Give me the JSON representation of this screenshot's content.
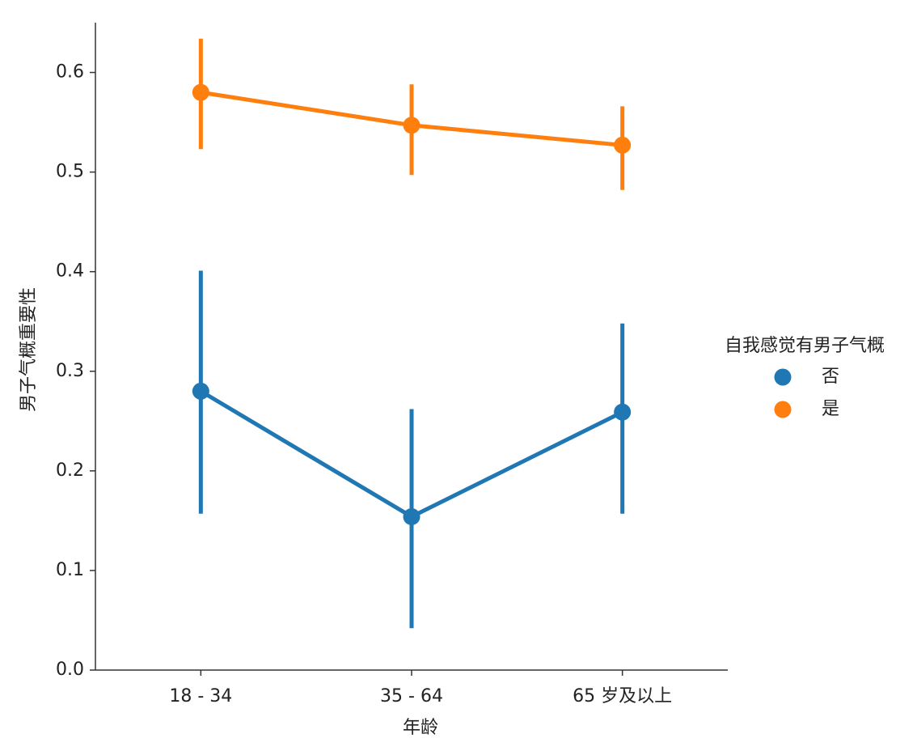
{
  "chart_data": {
    "type": "pointplot",
    "x_label": "年龄",
    "y_label": "男子气概重要性",
    "legend_title": "自我感觉有男子气概",
    "legend_position": "right",
    "categories": [
      "18 - 34",
      "35 - 64",
      "65 岁及以上"
    ],
    "series": [
      {
        "name": "否",
        "color": "#1f77b4",
        "values": [
          0.28,
          0.154,
          0.259
        ],
        "ci_low": [
          0.157,
          0.042,
          0.157
        ],
        "ci_high": [
          0.401,
          0.262,
          0.348
        ]
      },
      {
        "name": "是",
        "color": "#ff7f0e",
        "values": [
          0.58,
          0.547,
          0.527
        ],
        "ci_low": [
          0.523,
          0.497,
          0.482
        ],
        "ci_high": [
          0.634,
          0.588,
          0.566
        ]
      }
    ],
    "ylim": [
      0,
      0.65
    ],
    "yticks": [
      {
        "value": 0,
        "label": "0.0"
      },
      0.1,
      0.2,
      0.3,
      0.4,
      0.5,
      0.6
    ]
  }
}
